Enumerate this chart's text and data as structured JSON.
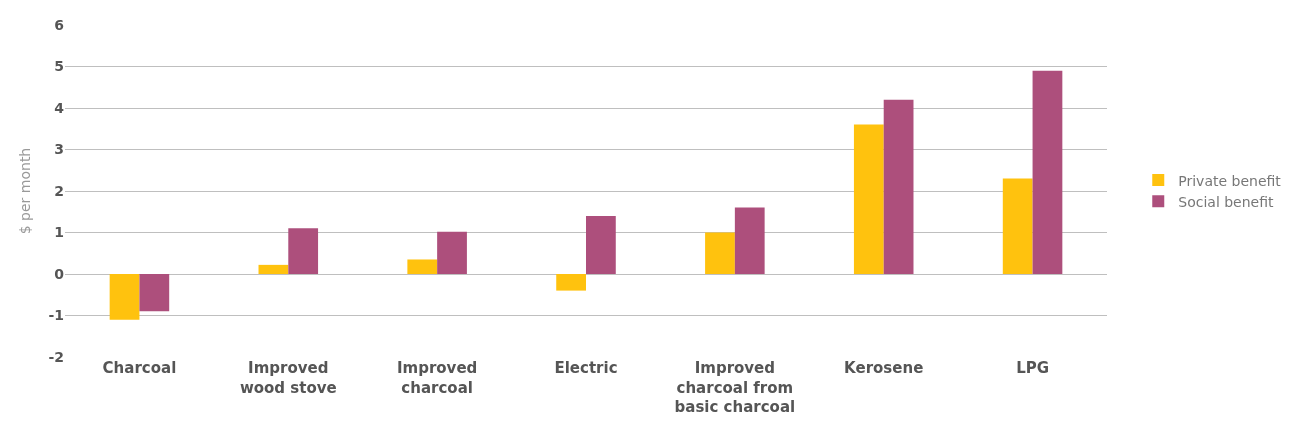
{
  "chart_data": {
    "type": "bar",
    "ylabel": "$ per month",
    "categories": [
      "Charcoal",
      "Improved wood stove",
      "Improved charcoal",
      "Electric",
      "Improved charcoal from basic charcoal",
      "Kerosene",
      "LPG"
    ],
    "series": [
      {
        "name": "Private benefit",
        "color": "#ffc20e",
        "values": [
          -1.1,
          0.22,
          0.35,
          -0.4,
          1.0,
          3.6,
          2.3
        ]
      },
      {
        "name": "Social benefit",
        "color": "#ad4f7c",
        "values": [
          -0.9,
          1.1,
          1.02,
          1.4,
          1.6,
          4.2,
          4.9
        ]
      }
    ],
    "ylim": [
      -2,
      6
    ],
    "yticks": [
      -2,
      -1,
      0,
      1,
      2,
      3,
      4,
      5,
      6
    ],
    "grid": "y",
    "legend": "right"
  }
}
